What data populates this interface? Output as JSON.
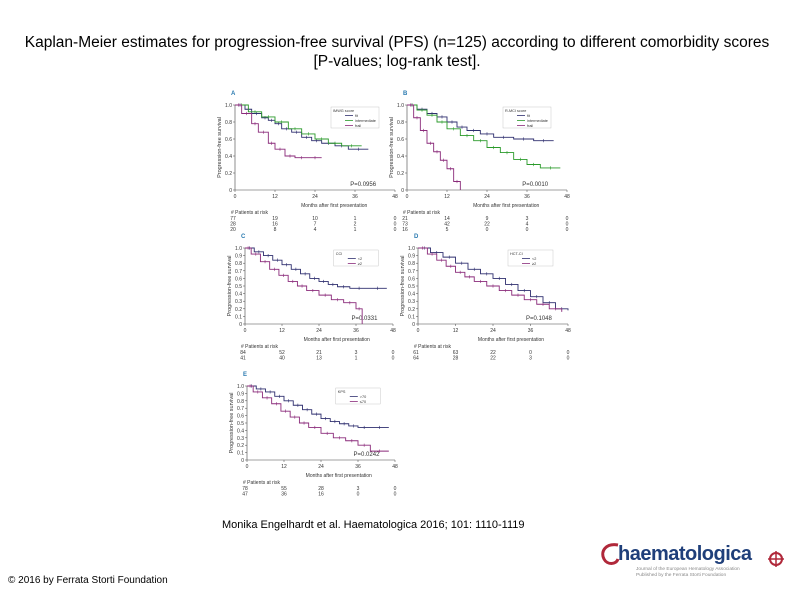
{
  "slide": {
    "title": "Kaplan-Meier estimates for progression-free survival (PFS) (n=125) according to different comorbidity scores [P-values; log-rank test].",
    "citation": "Monika Engelhardt et al. Haematologica 2016; 101: 1110-1119",
    "copyright": "© 2016 by Ferrata Storti Foundation",
    "journal": {
      "name": "haematologica",
      "tagline1": "Journal of the European Hematology Association",
      "tagline2": "Published by the Ferrata Storti Foundation"
    }
  },
  "colors": {
    "series_a": "#2f2f6f",
    "series_b": "#8a2a7a",
    "series_c": "#2a9a2a",
    "text": "#000000"
  },
  "chart_data": [
    {
      "panel": "A",
      "type": "line",
      "ylabel": "Progression-free survival",
      "xlabel": "Months after first presentation",
      "ylim": [
        0,
        1.0
      ],
      "xlim": [
        0,
        48
      ],
      "yticks": [
        "0",
        "0.2",
        "0.4",
        "0.6",
        "0.8",
        "1.0"
      ],
      "xticks": [
        "0",
        "12",
        "24",
        "36",
        "48"
      ],
      "pvalue": "P=0.0956",
      "legend": {
        "title": "IMWG score",
        "entries": [
          "fit",
          "intermediate",
          "frail"
        ]
      },
      "risk_label": "# Patients at risk",
      "risk_rows": [
        [
          "77",
          "19",
          "10",
          "1",
          "0"
        ],
        [
          "28",
          "16",
          "7",
          "2",
          "0"
        ],
        [
          "20",
          "8",
          "4",
          "1",
          "0"
        ]
      ],
      "series": [
        {
          "name": "fit",
          "color_key": "series_a",
          "x": [
            0,
            3,
            5,
            8,
            10,
            12,
            14,
            17,
            20,
            23,
            26,
            30,
            34,
            40
          ],
          "y": [
            1.0,
            0.95,
            0.9,
            0.85,
            0.82,
            0.78,
            0.72,
            0.68,
            0.62,
            0.58,
            0.55,
            0.52,
            0.48,
            0.48
          ]
        },
        {
          "name": "intermediate",
          "color_key": "series_c",
          "x": [
            0,
            4,
            8,
            12,
            16,
            20,
            24,
            28,
            32,
            38
          ],
          "y": [
            1.0,
            0.92,
            0.86,
            0.8,
            0.72,
            0.66,
            0.6,
            0.55,
            0.52,
            0.52
          ]
        },
        {
          "name": "frail",
          "color_key": "series_b",
          "x": [
            0,
            2,
            5,
            7,
            10,
            12,
            15,
            18,
            22,
            26
          ],
          "y": [
            1.0,
            0.9,
            0.78,
            0.68,
            0.55,
            0.48,
            0.4,
            0.38,
            0.38,
            0.38
          ]
        }
      ]
    },
    {
      "panel": "B",
      "type": "line",
      "ylabel": "Progression-free survival",
      "xlabel": "Months after first presentation",
      "ylim": [
        0,
        1.0
      ],
      "xlim": [
        0,
        48
      ],
      "yticks": [
        "0",
        "0.2",
        "0.4",
        "0.6",
        "0.8",
        "1.0"
      ],
      "xticks": [
        "0",
        "12",
        "24",
        "36",
        "48"
      ],
      "pvalue": "P=0.0010",
      "legend": {
        "title": "R-MCI score",
        "entries": [
          "fit",
          "intermediate",
          "frail"
        ]
      },
      "risk_label": "# Patients at risk",
      "risk_rows": [
        [
          "21",
          "14",
          "9",
          "3",
          "0"
        ],
        [
          "73",
          "42",
          "22",
          "4",
          "0"
        ],
        [
          "16",
          "5",
          "0",
          "0",
          "0"
        ]
      ],
      "series": [
        {
          "name": "fit",
          "color_key": "series_a",
          "x": [
            0,
            3,
            6,
            9,
            12,
            15,
            18,
            22,
            26,
            32,
            38,
            44
          ],
          "y": [
            1.0,
            0.95,
            0.9,
            0.86,
            0.8,
            0.74,
            0.7,
            0.66,
            0.62,
            0.6,
            0.58,
            0.58
          ]
        },
        {
          "name": "intermediate",
          "color_key": "series_c",
          "x": [
            0,
            3,
            6,
            9,
            12,
            16,
            20,
            24,
            28,
            32,
            36,
            40,
            46
          ],
          "y": [
            1.0,
            0.94,
            0.88,
            0.8,
            0.72,
            0.64,
            0.58,
            0.5,
            0.44,
            0.36,
            0.3,
            0.26,
            0.26
          ]
        },
        {
          "name": "frail",
          "color_key": "series_b",
          "x": [
            0,
            2,
            4,
            6,
            8,
            10,
            12,
            14,
            16
          ],
          "y": [
            1.0,
            0.85,
            0.7,
            0.55,
            0.45,
            0.35,
            0.25,
            0.1,
            0.0
          ]
        }
      ]
    },
    {
      "panel": "C",
      "type": "line",
      "ylabel": "Progression-free survival",
      "xlabel": "Months after first presentation",
      "ylim": [
        0,
        1.0
      ],
      "xlim": [
        0,
        48
      ],
      "yticks": [
        "0",
        "0.1",
        "0.2",
        "0.3",
        "0.4",
        "0.5",
        "0.6",
        "0.7",
        "0.8",
        "0.9",
        "1.0"
      ],
      "xticks": [
        "0",
        "12",
        "24",
        "36",
        "48"
      ],
      "pvalue": "P=0.0331",
      "legend": {
        "title": "CCI",
        "entries": [
          "<2",
          "≥2"
        ]
      },
      "risk_label": "# Patients at risk",
      "risk_rows": [
        [
          "84",
          "52",
          "21",
          "3",
          "0"
        ],
        [
          "41",
          "40",
          "13",
          "1",
          "0"
        ]
      ],
      "series": [
        {
          "name": "<2",
          "color_key": "series_a",
          "x": [
            0,
            3,
            6,
            9,
            12,
            15,
            18,
            21,
            24,
            27,
            30,
            34,
            40,
            46
          ],
          "y": [
            1.0,
            0.95,
            0.9,
            0.84,
            0.78,
            0.72,
            0.66,
            0.6,
            0.56,
            0.52,
            0.49,
            0.47,
            0.47,
            0.47
          ]
        },
        {
          "name": "≥2",
          "color_key": "series_b",
          "x": [
            0,
            2,
            5,
            8,
            11,
            14,
            17,
            20,
            24,
            28,
            32,
            36,
            38
          ],
          "y": [
            1.0,
            0.92,
            0.82,
            0.72,
            0.64,
            0.56,
            0.5,
            0.44,
            0.38,
            0.32,
            0.28,
            0.2,
            0.0
          ]
        }
      ]
    },
    {
      "panel": "D",
      "type": "line",
      "ylabel": "Progression-free survival",
      "xlabel": "Months after first presentation",
      "ylim": [
        0,
        1.0
      ],
      "xlim": [
        0,
        48
      ],
      "yticks": [
        "0",
        "0.1",
        "0.2",
        "0.3",
        "0.4",
        "0.5",
        "0.6",
        "0.7",
        "0.8",
        "0.9",
        "1.0"
      ],
      "xticks": [
        "0",
        "12",
        "24",
        "36",
        "48"
      ],
      "pvalue": "P=0.1048",
      "legend": {
        "title": "HCT-CI",
        "entries": [
          "<2",
          "≥2"
        ]
      },
      "risk_label": "# Patients at risk",
      "risk_rows": [
        [
          "61",
          "63",
          "22",
          "0",
          "0"
        ],
        [
          "64",
          "28",
          "22",
          "3",
          "0"
        ]
      ],
      "series": [
        {
          "name": "<2",
          "color_key": "series_a",
          "x": [
            0,
            4,
            8,
            12,
            16,
            20,
            24,
            28,
            32,
            36,
            40,
            44,
            48
          ],
          "y": [
            1.0,
            0.94,
            0.88,
            0.8,
            0.72,
            0.66,
            0.6,
            0.52,
            0.44,
            0.36,
            0.28,
            0.2,
            0.18
          ]
        },
        {
          "name": "≥2",
          "color_key": "series_b",
          "x": [
            0,
            3,
            6,
            9,
            12,
            15,
            18,
            22,
            26,
            30,
            34,
            38,
            42,
            46
          ],
          "y": [
            1.0,
            0.92,
            0.84,
            0.76,
            0.68,
            0.62,
            0.56,
            0.5,
            0.44,
            0.38,
            0.32,
            0.26,
            0.2,
            0.16
          ]
        }
      ]
    },
    {
      "panel": "E",
      "type": "line",
      "ylabel": "Progression-free survival",
      "xlabel": "Months after first presentation",
      "ylim": [
        0,
        1.0
      ],
      "xlim": [
        0,
        48
      ],
      "yticks": [
        "0",
        "0.1",
        "0.2",
        "0.3",
        "0.4",
        "0.5",
        "0.6",
        "0.7",
        "0.8",
        "0.9",
        "1.0"
      ],
      "xticks": [
        "0",
        "12",
        "24",
        "36",
        "48"
      ],
      "pvalue": "P=0.0242",
      "legend": {
        "title": "KPS",
        "entries": [
          ">70",
          "≤70"
        ]
      },
      "risk_label": "# Patients at risk",
      "risk_rows": [
        [
          "78",
          "55",
          "28",
          "3",
          "0"
        ],
        [
          "47",
          "36",
          "16",
          "0",
          "0"
        ]
      ],
      "series": [
        {
          "name": ">70",
          "color_key": "series_a",
          "x": [
            0,
            3,
            6,
            9,
            12,
            15,
            18,
            21,
            24,
            27,
            30,
            33,
            36,
            40,
            46
          ],
          "y": [
            1.0,
            0.96,
            0.92,
            0.86,
            0.8,
            0.74,
            0.68,
            0.62,
            0.56,
            0.52,
            0.49,
            0.46,
            0.44,
            0.44,
            0.44
          ]
        },
        {
          "name": "≤70",
          "color_key": "series_b",
          "x": [
            0,
            2,
            5,
            8,
            11,
            14,
            17,
            20,
            24,
            28,
            32,
            36,
            40,
            46
          ],
          "y": [
            1.0,
            0.92,
            0.84,
            0.76,
            0.66,
            0.58,
            0.5,
            0.44,
            0.36,
            0.3,
            0.26,
            0.2,
            0.12,
            0.12
          ]
        }
      ]
    }
  ]
}
